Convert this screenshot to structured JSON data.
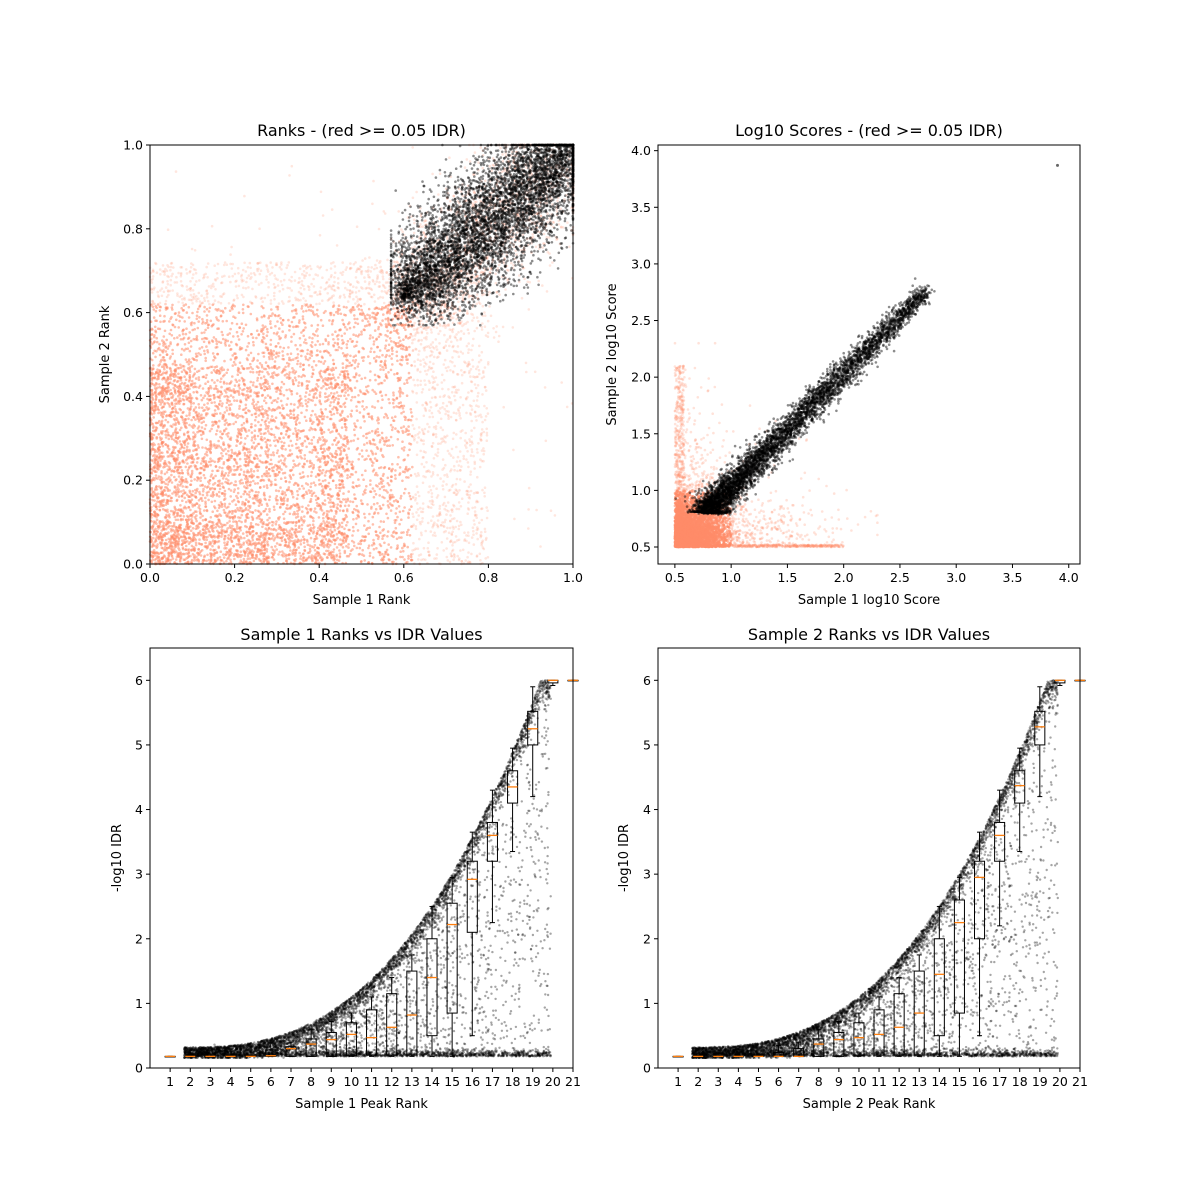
{
  "chart_data": [
    {
      "type": "scatter",
      "title": "Ranks - (red >= 0.05 IDR)",
      "xlabel": "Sample 1 Rank",
      "ylabel": "Sample 2 Rank",
      "xlim": [
        0,
        1
      ],
      "ylim": [
        0,
        1
      ],
      "xticks": [
        "0.0",
        "0.2",
        "0.4",
        "0.6",
        "0.8",
        "1.0"
      ],
      "yticks": [
        "0.0",
        "0.2",
        "0.4",
        "0.6",
        "0.8",
        "1.0"
      ],
      "grid": false,
      "colors": {
        "above_threshold": "#ff8c69",
        "below_threshold": "#000000"
      },
      "series": [
        {
          "role": "idr_above_threshold",
          "color": "#ff8c69",
          "description_points": [
            [
              0.02,
              0.05
            ],
            [
              0.1,
              0.3
            ],
            [
              0.2,
              0.2
            ],
            [
              0.3,
              0.5
            ],
            [
              0.45,
              0.4
            ],
            [
              0.55,
              0.7
            ],
            [
              0.7,
              0.75
            ],
            [
              0.8,
              0.55
            ],
            [
              0.9,
              0.8
            ]
          ]
        },
        {
          "role": "idr_below_threshold",
          "color": "#000000",
          "description_points": [
            [
              0.6,
              0.6
            ],
            [
              0.7,
              0.7
            ],
            [
              0.8,
              0.8
            ],
            [
              0.9,
              0.9
            ],
            [
              1.0,
              1.0
            ],
            [
              0.65,
              0.8
            ],
            [
              0.9,
              0.85
            ]
          ]
        }
      ]
    },
    {
      "type": "scatter",
      "title": "Log10 Scores - (red >= 0.05 IDR)",
      "xlabel": "Sample 1 log10 Score",
      "ylabel": "Sample 2 log10 Score",
      "xlim": [
        0.35,
        4.1
      ],
      "ylim": [
        0.35,
        4.05
      ],
      "xticks": [
        "0.5",
        "1.0",
        "1.5",
        "2.0",
        "2.5",
        "3.0",
        "3.5",
        "4.0"
      ],
      "yticks": [
        "0.5",
        "1.0",
        "1.5",
        "2.0",
        "2.5",
        "3.0",
        "3.5",
        "4.0"
      ],
      "grid": false,
      "series": [
        {
          "role": "idr_above_threshold",
          "color": "#ff8c69",
          "description_points": [
            [
              0.5,
              0.5
            ],
            [
              0.6,
              0.8
            ],
            [
              0.8,
              0.6
            ],
            [
              1.0,
              0.9
            ],
            [
              0.55,
              1.2
            ],
            [
              1.5,
              0.7
            ],
            [
              2.2,
              0.55
            ]
          ]
        },
        {
          "role": "idr_below_threshold",
          "color": "#000000",
          "description_points": [
            [
              0.75,
              0.78
            ],
            [
              1.0,
              1.1
            ],
            [
              1.5,
              1.5
            ],
            [
              2.0,
              2.0
            ],
            [
              2.5,
              2.55
            ],
            [
              2.75,
              2.8
            ],
            [
              3.9,
              3.87
            ]
          ]
        }
      ]
    },
    {
      "type": "box",
      "title": "Sample 1 Ranks vs IDR Values",
      "xlabel": "Sample 1 Peak Rank",
      "ylabel": "-log10 IDR",
      "xlim": [
        0,
        21
      ],
      "ylim": [
        0,
        6.5
      ],
      "xticks": [
        "1",
        "2",
        "3",
        "4",
        "5",
        "6",
        "7",
        "8",
        "9",
        "10",
        "11",
        "12",
        "13",
        "14",
        "15",
        "16",
        "17",
        "18",
        "19",
        "20",
        "21"
      ],
      "yticks": [
        "0",
        "1",
        "2",
        "3",
        "4",
        "5",
        "6"
      ],
      "grid": false,
      "box_color": "#000000",
      "median_color": "#ff7f0e",
      "boxes": [
        {
          "pos": 1,
          "q1": 0.18,
          "median": 0.18,
          "q3": 0.18,
          "whislo": 0.18,
          "whishi": 0.18
        },
        {
          "pos": 2,
          "q1": 0.18,
          "median": 0.18,
          "q3": 0.18,
          "whislo": 0.18,
          "whishi": 0.18
        },
        {
          "pos": 3,
          "q1": 0.18,
          "median": 0.18,
          "q3": 0.18,
          "whislo": 0.18,
          "whishi": 0.18
        },
        {
          "pos": 4,
          "q1": 0.18,
          "median": 0.18,
          "q3": 0.18,
          "whislo": 0.18,
          "whishi": 0.18
        },
        {
          "pos": 5,
          "q1": 0.18,
          "median": 0.18,
          "q3": 0.19,
          "whislo": 0.18,
          "whishi": 0.2
        },
        {
          "pos": 6,
          "q1": 0.18,
          "median": 0.19,
          "q3": 0.28,
          "whislo": 0.18,
          "whishi": 0.4
        },
        {
          "pos": 7,
          "q1": 0.18,
          "median": 0.3,
          "q3": 0.33,
          "whislo": 0.18,
          "whishi": 0.4
        },
        {
          "pos": 8,
          "q1": 0.18,
          "median": 0.37,
          "q3": 0.45,
          "whislo": 0.18,
          "whishi": 0.6
        },
        {
          "pos": 9,
          "q1": 0.18,
          "median": 0.44,
          "q3": 0.55,
          "whislo": 0.18,
          "whishi": 0.72
        },
        {
          "pos": 10,
          "q1": 0.19,
          "median": 0.52,
          "q3": 0.7,
          "whislo": 0.18,
          "whishi": 0.85
        },
        {
          "pos": 11,
          "q1": 0.2,
          "median": 0.47,
          "q3": 0.9,
          "whislo": 0.18,
          "whishi": 1.1
        },
        {
          "pos": 12,
          "q1": 0.2,
          "median": 0.63,
          "q3": 1.15,
          "whislo": 0.18,
          "whishi": 1.4
        },
        {
          "pos": 13,
          "q1": 0.2,
          "median": 0.82,
          "q3": 1.5,
          "whislo": 0.18,
          "whishi": 1.75
        },
        {
          "pos": 14,
          "q1": 0.5,
          "median": 1.4,
          "q3": 2.0,
          "whislo": 0.18,
          "whishi": 2.5
        },
        {
          "pos": 15,
          "q1": 0.85,
          "median": 2.22,
          "q3": 2.55,
          "whislo": 0.18,
          "whishi": 2.95
        },
        {
          "pos": 16,
          "q1": 2.1,
          "median": 2.92,
          "q3": 3.2,
          "whislo": 0.5,
          "whishi": 3.65
        },
        {
          "pos": 17,
          "q1": 3.2,
          "median": 3.6,
          "q3": 3.8,
          "whislo": 2.25,
          "whishi": 4.3
        },
        {
          "pos": 18,
          "q1": 4.1,
          "median": 4.35,
          "q3": 4.6,
          "whislo": 3.35,
          "whishi": 4.95
        },
        {
          "pos": 19,
          "q1": 5.0,
          "median": 5.25,
          "q3": 5.52,
          "whislo": 4.2,
          "whishi": 5.9
        },
        {
          "pos": 20,
          "q1": 5.96,
          "median": 6.0,
          "q3": 6.0,
          "whislo": 5.92,
          "whishi": 6.0
        },
        {
          "pos": 21,
          "q1": 6.0,
          "median": 6.0,
          "q3": 6.0,
          "whislo": 6.0,
          "whishi": 6.0
        }
      ]
    },
    {
      "type": "box",
      "title": "Sample 2 Ranks vs IDR Values",
      "xlabel": "Sample 2 Peak Rank",
      "ylabel": "-log10 IDR",
      "xlim": [
        0,
        21
      ],
      "ylim": [
        0,
        6.5
      ],
      "xticks": [
        "1",
        "2",
        "3",
        "4",
        "5",
        "6",
        "7",
        "8",
        "9",
        "10",
        "11",
        "12",
        "13",
        "14",
        "15",
        "16",
        "17",
        "18",
        "19",
        "20",
        "21"
      ],
      "yticks": [
        "0",
        "1",
        "2",
        "3",
        "4",
        "5",
        "6"
      ],
      "grid": false,
      "box_color": "#000000",
      "median_color": "#ff7f0e",
      "boxes": [
        {
          "pos": 1,
          "q1": 0.18,
          "median": 0.18,
          "q3": 0.18,
          "whislo": 0.18,
          "whishi": 0.18
        },
        {
          "pos": 2,
          "q1": 0.18,
          "median": 0.18,
          "q3": 0.18,
          "whislo": 0.18,
          "whishi": 0.18
        },
        {
          "pos": 3,
          "q1": 0.18,
          "median": 0.18,
          "q3": 0.18,
          "whislo": 0.18,
          "whishi": 0.18
        },
        {
          "pos": 4,
          "q1": 0.18,
          "median": 0.18,
          "q3": 0.18,
          "whislo": 0.18,
          "whishi": 0.18
        },
        {
          "pos": 5,
          "q1": 0.18,
          "median": 0.18,
          "q3": 0.19,
          "whislo": 0.18,
          "whishi": 0.2
        },
        {
          "pos": 6,
          "q1": 0.18,
          "median": 0.18,
          "q3": 0.24,
          "whislo": 0.18,
          "whishi": 0.35
        },
        {
          "pos": 7,
          "q1": 0.18,
          "median": 0.18,
          "q3": 0.3,
          "whislo": 0.18,
          "whishi": 0.4
        },
        {
          "pos": 8,
          "q1": 0.18,
          "median": 0.37,
          "q3": 0.45,
          "whislo": 0.18,
          "whishi": 0.6
        },
        {
          "pos": 9,
          "q1": 0.18,
          "median": 0.44,
          "q3": 0.55,
          "whislo": 0.18,
          "whishi": 0.72
        },
        {
          "pos": 10,
          "q1": 0.19,
          "median": 0.47,
          "q3": 0.7,
          "whislo": 0.18,
          "whishi": 0.85
        },
        {
          "pos": 11,
          "q1": 0.2,
          "median": 0.52,
          "q3": 0.9,
          "whislo": 0.18,
          "whishi": 1.1
        },
        {
          "pos": 12,
          "q1": 0.2,
          "median": 0.63,
          "q3": 1.15,
          "whislo": 0.18,
          "whishi": 1.4
        },
        {
          "pos": 13,
          "q1": 0.2,
          "median": 0.85,
          "q3": 1.5,
          "whislo": 0.18,
          "whishi": 1.75
        },
        {
          "pos": 14,
          "q1": 0.5,
          "median": 1.45,
          "q3": 2.0,
          "whislo": 0.18,
          "whishi": 2.5
        },
        {
          "pos": 15,
          "q1": 0.85,
          "median": 2.25,
          "q3": 2.6,
          "whislo": 0.18,
          "whishi": 2.95
        },
        {
          "pos": 16,
          "q1": 2.0,
          "median": 2.95,
          "q3": 3.2,
          "whislo": 0.5,
          "whishi": 3.65
        },
        {
          "pos": 17,
          "q1": 3.2,
          "median": 3.6,
          "q3": 3.8,
          "whislo": 2.2,
          "whishi": 4.3
        },
        {
          "pos": 18,
          "q1": 4.1,
          "median": 4.37,
          "q3": 4.6,
          "whislo": 3.35,
          "whishi": 4.95
        },
        {
          "pos": 19,
          "q1": 5.0,
          "median": 5.28,
          "q3": 5.52,
          "whislo": 4.2,
          "whishi": 5.9
        },
        {
          "pos": 20,
          "q1": 5.96,
          "median": 6.0,
          "q3": 6.0,
          "whislo": 5.92,
          "whishi": 6.0
        },
        {
          "pos": 21,
          "q1": 6.0,
          "median": 6.0,
          "q3": 6.0,
          "whislo": 6.0,
          "whishi": 6.0
        }
      ]
    }
  ]
}
